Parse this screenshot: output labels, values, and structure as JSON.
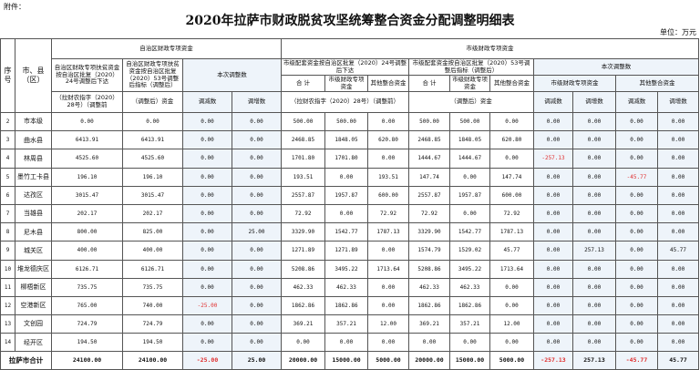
{
  "attachment_label": "附件：",
  "title": "2020年拉萨市财政脱贫攻坚统筹整合资金分配调整明细表",
  "unit": "单位：万元",
  "headers": {
    "seq": "序号",
    "region": "市、县（区）",
    "autonomous_group": "自治区财政专项资金",
    "city_group": "市级财政专项资金",
    "auto_col1": "自治区财政专项扶贫资金按自治区批复（2020）24号调整后下达",
    "auto_col1_sub": "（拉财农指字（2020）28号）（调整前",
    "auto_col2": "自治区财政专项扶贫资金按自治区批复（2020）53号调整后指标（调整后）",
    "auto_col2_sub": "（调整后）资金",
    "adjust": "本次调整数",
    "decrease": "调减数",
    "increase": "调增数",
    "city_24": "市级配套资金按自治区批复（2020）24号调整后下达",
    "city_53": "市级配套资金按自治区批复（2020）53号调整后指标（调整后）",
    "total": "合 计",
    "city_special": "市级财政专项资金",
    "other": "其他整合资金",
    "city_24_sub": "（拉财农指字（2020）28号）（调整前）",
    "city_53_sub": "（调整后）资金"
  },
  "rows": [
    {
      "seq": "2",
      "name": "市本级",
      "v": [
        "0.00",
        "0.00",
        "0.00",
        "0.00",
        "500.00",
        "500.00",
        "0.00",
        "500.00",
        "500.00",
        "0.00",
        "0.00",
        "0.00",
        "0.00",
        "0.00"
      ]
    },
    {
      "seq": "3",
      "name": "曲水县",
      "v": [
        "6413.91",
        "6413.91",
        "0.00",
        "0.00",
        "2468.85",
        "1848.05",
        "620.80",
        "2468.85",
        "1848.05",
        "620.80",
        "0.00",
        "0.00",
        "0.00",
        "0.00"
      ]
    },
    {
      "seq": "4",
      "name": "林周县",
      "v": [
        "4525.60",
        "4525.60",
        "0.00",
        "0.00",
        "1701.80",
        "1701.80",
        "0.00",
        "1444.67",
        "1444.67",
        "0.00",
        "-257.13",
        "0.00",
        "0.00",
        "0.00"
      ]
    },
    {
      "seq": "5",
      "name": "墨竹工卡县",
      "v": [
        "196.10",
        "196.10",
        "0.00",
        "0.00",
        "193.51",
        "0.00",
        "193.51",
        "147.74",
        "0.00",
        "147.74",
        "0.00",
        "0.00",
        "-45.77",
        "0.00"
      ]
    },
    {
      "seq": "6",
      "name": "达孜区",
      "v": [
        "3015.47",
        "3015.47",
        "0.00",
        "0.00",
        "2557.87",
        "1957.87",
        "600.00",
        "2557.87",
        "1957.87",
        "600.00",
        "0.00",
        "0.00",
        "0.00",
        "0.00"
      ]
    },
    {
      "seq": "7",
      "name": "当雄县",
      "v": [
        "202.17",
        "202.17",
        "0.00",
        "0.00",
        "72.92",
        "0.00",
        "72.92",
        "72.92",
        "0.00",
        "72.92",
        "0.00",
        "0.00",
        "0.00",
        "0.00"
      ]
    },
    {
      "seq": "8",
      "name": "尼木县",
      "v": [
        "800.00",
        "825.00",
        "0.00",
        "25.00",
        "3329.90",
        "1542.77",
        "1787.13",
        "3329.90",
        "1542.77",
        "1787.13",
        "0.00",
        "0.00",
        "0.00",
        "0.00"
      ]
    },
    {
      "seq": "9",
      "name": "城关区",
      "v": [
        "400.00",
        "400.00",
        "0.00",
        "0.00",
        "1271.89",
        "1271.89",
        "0.00",
        "1574.79",
        "1529.02",
        "45.77",
        "0.00",
        "257.13",
        "0.00",
        "45.77"
      ]
    },
    {
      "seq": "10",
      "name": "堆龙德庆区",
      "v": [
        "6126.71",
        "6126.71",
        "0.00",
        "0.00",
        "5208.86",
        "3495.22",
        "1713.64",
        "5208.86",
        "3495.22",
        "1713.64",
        "0.00",
        "0.00",
        "0.00",
        "0.00"
      ]
    },
    {
      "seq": "11",
      "name": "柳梧新区",
      "v": [
        "735.75",
        "735.75",
        "0.00",
        "0.00",
        "462.33",
        "462.33",
        "0.00",
        "462.33",
        "462.33",
        "0.00",
        "0.00",
        "0.00",
        "0.00",
        "0.00"
      ]
    },
    {
      "seq": "12",
      "name": "空港新区",
      "v": [
        "765.00",
        "740.00",
        "-25.00",
        "0.00",
        "1862.86",
        "1862.86",
        "0.00",
        "1862.86",
        "1862.86",
        "0.00",
        "0.00",
        "0.00",
        "0.00",
        "0.00"
      ]
    },
    {
      "seq": "13",
      "name": "文创园",
      "v": [
        "724.79",
        "724.79",
        "0.00",
        "0.00",
        "369.21",
        "357.21",
        "12.00",
        "369.21",
        "357.21",
        "12.00",
        "0.00",
        "0.00",
        "0.00",
        "0.00"
      ]
    },
    {
      "seq": "14",
      "name": "经开区",
      "v": [
        "194.50",
        "194.50",
        "0.00",
        "0.00",
        "0.00",
        "0.00",
        "0.00",
        "0.00",
        "0.00",
        "0.00",
        "0.00",
        "0.00",
        "0.00",
        "0.00"
      ]
    }
  ],
  "total": {
    "name": "拉萨市合计",
    "v": [
      "24100.00",
      "24100.00",
      "-25.00",
      "25.00",
      "20000.00",
      "15000.00",
      "5000.00",
      "20000.00",
      "15000.00",
      "5000.00",
      "-257.13",
      "257.13",
      "-45.77",
      "45.77"
    ]
  },
  "colors": {
    "negative": "#e03030",
    "adjust_bg": "#eef4fa",
    "border": "#555555"
  }
}
